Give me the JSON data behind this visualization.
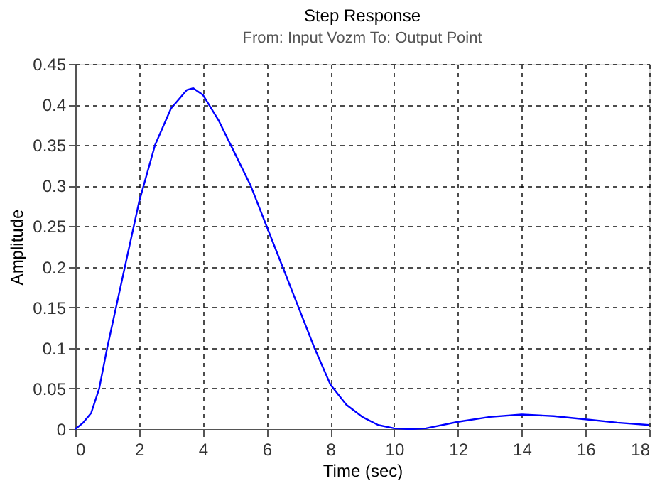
{
  "chart_data": {
    "type": "line",
    "title": "Step Response",
    "subtitle": "From: Input Vozm  To: Output Point",
    "xlabel": "Time (sec)",
    "ylabel": "Amplitude",
    "x": [
      0,
      0.25,
      0.5,
      0.75,
      1,
      1.5,
      2,
      2.5,
      3,
      3.5,
      3.7,
      4,
      4.5,
      5,
      5.5,
      6,
      6.5,
      7,
      7.5,
      8,
      8.5,
      9,
      9.5,
      10,
      10.5,
      11,
      12,
      13,
      14,
      15,
      16,
      17,
      18
    ],
    "series": [
      {
        "color": "#0000ff",
        "values": [
          0,
          0.008,
          0.02,
          0.05,
          0.1,
          0.19,
          0.28,
          0.35,
          0.395,
          0.418,
          0.42,
          0.412,
          0.38,
          0.34,
          0.3,
          0.25,
          0.2,
          0.15,
          0.1,
          0.055,
          0.03,
          0.015,
          0.005,
          0.001,
          0,
          0.001,
          0.009,
          0.015,
          0.018,
          0.016,
          0.012,
          0.008,
          0.005
        ]
      }
    ],
    "xlim": [
      0,
      18
    ],
    "xticks": [
      0,
      2,
      4,
      6,
      8,
      10,
      12,
      14,
      16,
      18
    ],
    "ylim": [
      0,
      0.45
    ],
    "yticks": [
      0,
      0.05,
      0.1,
      0.15,
      0.2,
      0.25,
      0.3,
      0.35,
      0.4,
      0.45
    ],
    "grid": true,
    "line_style": "solid",
    "marker": "none"
  }
}
